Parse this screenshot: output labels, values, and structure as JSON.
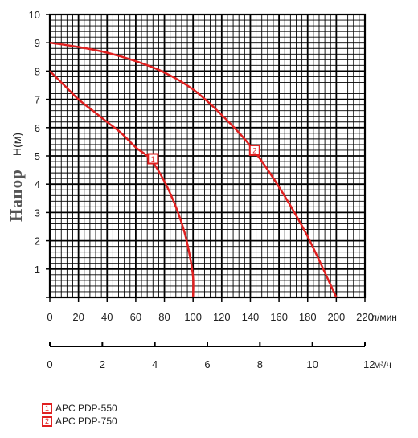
{
  "chart_data": {
    "type": "line",
    "ylabel": "Напор",
    "yunit": "H(м)",
    "xunit": "л/мин",
    "x2unit": "м³/ч",
    "ylim": [
      0,
      10
    ],
    "xlim": [
      0,
      220
    ],
    "yticks": [
      1,
      2,
      3,
      4,
      5,
      6,
      7,
      8,
      9,
      10
    ],
    "xticks": [
      0,
      20,
      40,
      60,
      80,
      100,
      120,
      140,
      160,
      180,
      200,
      220
    ],
    "x2lim": [
      0,
      12
    ],
    "x2ticks": [
      0,
      2,
      4,
      6,
      8,
      10,
      12
    ],
    "grid": true,
    "series": [
      {
        "name": "APC PDP-550",
        "marker": "1",
        "marker_at": [
          72,
          4.9
        ],
        "x": [
          0,
          10,
          20,
          30,
          40,
          50,
          60,
          70,
          80,
          88,
          94,
          98,
          100,
          100
        ],
        "y": [
          8.0,
          7.5,
          7.0,
          6.6,
          6.2,
          5.8,
          5.3,
          4.9,
          4.1,
          3.2,
          2.3,
          1.4,
          0.7,
          0.0
        ]
      },
      {
        "name": "APC PDP-750",
        "marker": "2",
        "marker_at": [
          143,
          5.2
        ],
        "x": [
          0,
          20,
          40,
          60,
          80,
          100,
          120,
          140,
          160,
          180,
          200
        ],
        "y": [
          9.0,
          8.85,
          8.65,
          8.35,
          7.95,
          7.35,
          6.45,
          5.35,
          3.9,
          2.15,
          0.0
        ]
      }
    ],
    "line_color": "#e02020"
  },
  "legend": [
    {
      "num": "1",
      "label": "APC PDP-550"
    },
    {
      "num": "2",
      "label": "APC PDP-750"
    }
  ]
}
